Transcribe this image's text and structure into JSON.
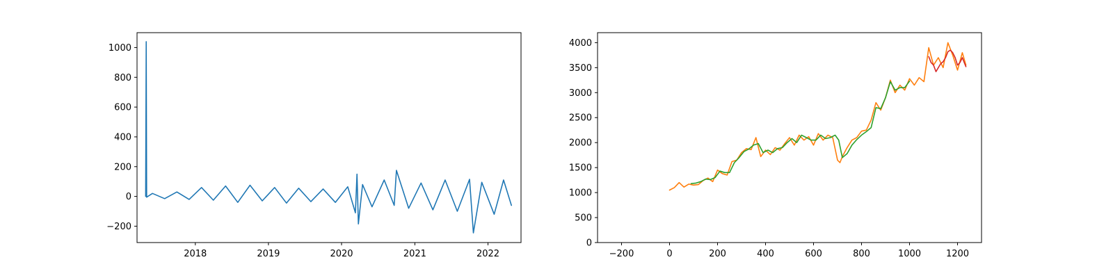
{
  "colors": {
    "tab_blue": "#1f77b4",
    "tab_orange": "#ff7f0e",
    "tab_green": "#2ca02c",
    "tab_red": "#d62728"
  },
  "chart_data": [
    {
      "type": "line",
      "title": "",
      "xlabel": "",
      "ylabel": "",
      "x_scale": "date",
      "xlim": [
        "2017-03-16",
        "2022-06-15"
      ],
      "ylim": [
        -310,
        1100
      ],
      "xticks": [
        "2018",
        "2019",
        "2020",
        "2021",
        "2022"
      ],
      "yticks": [
        "−200",
        "0",
        "200",
        "400",
        "600",
        "800",
        "1000"
      ],
      "xtick_values": [
        "2018-01-01",
        "2019-01-01",
        "2020-01-01",
        "2021-01-01",
        "2022-01-01"
      ],
      "ytick_values": [
        -200,
        0,
        200,
        400,
        600,
        800,
        1000
      ],
      "grid": false,
      "series": [
        {
          "color": "#1f77b4",
          "x": [
            "2017-04-28",
            "2017-05-01",
            "2017-05-03",
            "2017-06-01",
            "2017-08-01",
            "2017-10-01",
            "2017-12-01",
            "2018-02-01",
            "2018-04-01",
            "2018-06-01",
            "2018-08-01",
            "2018-10-01",
            "2018-12-01",
            "2019-02-01",
            "2019-04-01",
            "2019-06-01",
            "2019-08-01",
            "2019-10-01",
            "2019-12-01",
            "2020-02-01",
            "2020-03-10",
            "2020-03-18",
            "2020-03-25",
            "2020-04-15",
            "2020-06-01",
            "2020-08-01",
            "2020-09-20",
            "2020-10-01",
            "2020-12-01",
            "2021-02-01",
            "2021-04-01",
            "2021-06-01",
            "2021-08-01",
            "2021-10-01",
            "2021-10-20",
            "2021-12-01",
            "2022-02-01",
            "2022-03-20",
            "2022-04-28"
          ],
          "y": [
            0,
            1040,
            -5,
            20,
            -15,
            30,
            -20,
            60,
            -25,
            70,
            -40,
            75,
            -30,
            60,
            -45,
            55,
            -35,
            50,
            -40,
            65,
            -110,
            150,
            -185,
            80,
            -70,
            110,
            -60,
            175,
            -80,
            90,
            -90,
            110,
            -100,
            115,
            -245,
            95,
            -120,
            110,
            -60
          ]
        }
      ]
    },
    {
      "type": "line",
      "title": "",
      "xlabel": "",
      "ylabel": "",
      "xlim": [
        -300,
        1300
      ],
      "ylim": [
        0,
        4200
      ],
      "xticks": [
        "−200",
        "0",
        "200",
        "400",
        "600",
        "800",
        "1000",
        "1200"
      ],
      "yticks": [
        "0",
        "500",
        "1000",
        "1500",
        "2000",
        "2500",
        "3000",
        "3500",
        "4000"
      ],
      "xtick_values": [
        -200,
        0,
        200,
        400,
        600,
        800,
        1000,
        1200
      ],
      "ytick_values": [
        0,
        500,
        1000,
        1500,
        2000,
        2500,
        3000,
        3500,
        4000
      ],
      "grid": false,
      "series": [
        {
          "color": "#ff7f0e",
          "x": [
            0,
            20,
            40,
            60,
            80,
            100,
            120,
            140,
            160,
            180,
            200,
            220,
            240,
            260,
            280,
            300,
            320,
            340,
            360,
            380,
            400,
            420,
            440,
            460,
            480,
            500,
            520,
            540,
            560,
            580,
            600,
            620,
            640,
            660,
            680,
            700,
            710,
            720,
            740,
            760,
            780,
            800,
            820,
            840,
            860,
            880,
            900,
            920,
            940,
            960,
            980,
            1000,
            1020,
            1040,
            1060,
            1080,
            1100,
            1120,
            1140,
            1160,
            1180,
            1200,
            1220,
            1235
          ],
          "y": [
            1050,
            1100,
            1200,
            1110,
            1170,
            1150,
            1160,
            1240,
            1290,
            1220,
            1450,
            1380,
            1350,
            1620,
            1650,
            1800,
            1880,
            1860,
            2100,
            1720,
            1850,
            1760,
            1900,
            1850,
            1980,
            2100,
            1950,
            2150,
            2050,
            2120,
            1950,
            2180,
            2050,
            2150,
            2100,
            1650,
            1600,
            1720,
            1900,
            2050,
            2100,
            2230,
            2250,
            2450,
            2800,
            2650,
            2900,
            3250,
            3000,
            3150,
            3050,
            3280,
            3150,
            3300,
            3220,
            3900,
            3550,
            3700,
            3500,
            4000,
            3750,
            3450,
            3800,
            3550
          ]
        },
        {
          "color": "#2ca02c",
          "x": [
            90,
            110,
            130,
            150,
            170,
            190,
            210,
            230,
            250,
            270,
            290,
            310,
            330,
            350,
            370,
            390,
            410,
            430,
            450,
            470,
            490,
            510,
            530,
            550,
            570,
            590,
            610,
            630,
            650,
            670,
            690,
            705,
            720,
            740,
            760,
            780,
            800,
            820,
            840,
            860,
            880,
            900,
            920,
            940,
            960,
            980,
            1000
          ],
          "y": [
            1180,
            1190,
            1220,
            1270,
            1260,
            1300,
            1430,
            1400,
            1400,
            1600,
            1700,
            1820,
            1870,
            1950,
            1980,
            1800,
            1850,
            1800,
            1880,
            1900,
            2000,
            2080,
            2000,
            2150,
            2100,
            2050,
            2050,
            2150,
            2080,
            2100,
            2150,
            2050,
            1700,
            1780,
            1950,
            2060,
            2150,
            2220,
            2300,
            2700,
            2680,
            2900,
            3220,
            3050,
            3100,
            3100,
            3230
          ]
        },
        {
          "color": "#d62728",
          "x": [
            1080,
            1090,
            1100,
            1110,
            1120,
            1130,
            1140,
            1150,
            1160,
            1170,
            1180,
            1190,
            1200,
            1210,
            1220,
            1230,
            1235
          ],
          "y": [
            3720,
            3600,
            3550,
            3420,
            3500,
            3580,
            3620,
            3700,
            3820,
            3850,
            3800,
            3700,
            3550,
            3600,
            3700,
            3580,
            3520
          ]
        }
      ]
    }
  ]
}
